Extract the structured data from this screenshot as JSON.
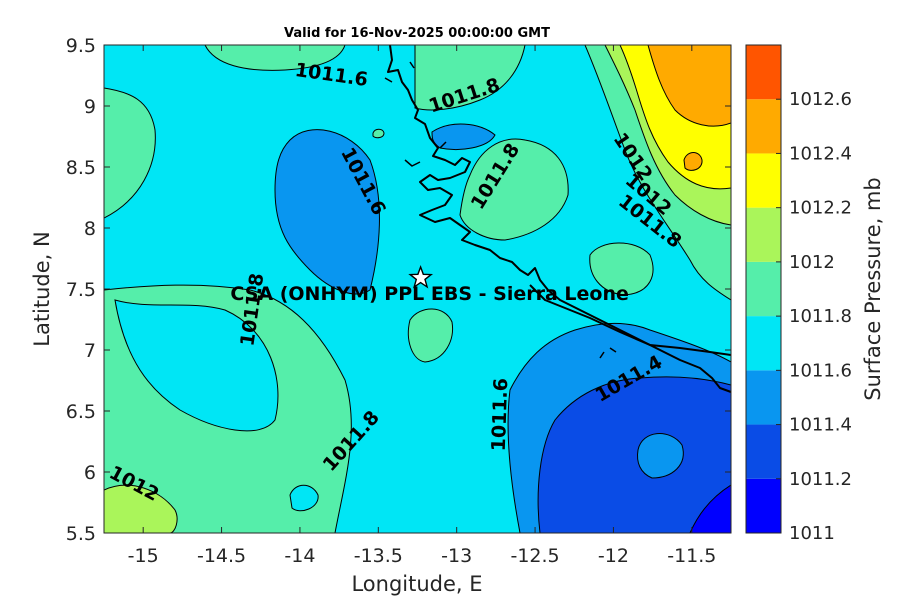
{
  "chart_data": {
    "type": "contour-map",
    "title": "Valid for 16-Nov-2025 00:00:00 GMT",
    "xlabel": "Longitude, E",
    "ylabel": "Latitude, N",
    "xlim": [
      -15.25,
      -11.25
    ],
    "ylim": [
      5.5,
      9.5
    ],
    "xticks": [
      -15,
      -14.5,
      -14,
      -13.5,
      -13,
      -12.5,
      -12,
      -11.5
    ],
    "yticks": [
      5.5,
      6,
      6.5,
      7,
      7.5,
      8,
      8.5,
      9,
      9.5
    ],
    "station": {
      "label": "CSA (ONHYM) PPL EBS  - Sierra Leone",
      "lon": -13.23,
      "lat": 7.59
    },
    "colorbar": {
      "label": "Surface Pressure, mb",
      "levels": [
        1011,
        1011.2,
        1011.4,
        1011.6,
        1011.8,
        1012,
        1012.2,
        1012.4,
        1012.6
      ],
      "tick_labels": [
        "1011",
        "1011.2",
        "1011.4",
        "1011.6",
        "1011.8",
        "1012",
        "1012.2",
        "1012.4",
        "1012.6"
      ],
      "colors": [
        "#0000ff",
        "#0a4ce6",
        "#0996f0",
        "#00e6f5",
        "#55eeaa",
        "#aaf55a",
        "#ffff00",
        "#ffaa00",
        "#ff5500"
      ]
    },
    "contour_labels": [
      {
        "text": "1011.6",
        "lon": -13.8,
        "lat": 9.25,
        "angle": 8
      },
      {
        "text": "1011.8",
        "lon": -12.95,
        "lat": 9.08,
        "angle": -18
      },
      {
        "text": "1011.6",
        "lon": -13.6,
        "lat": 8.38,
        "angle": 62
      },
      {
        "text": "1011.8",
        "lon": -12.75,
        "lat": 8.42,
        "angle": -58
      },
      {
        "text": "1012",
        "lon": -11.88,
        "lat": 8.58,
        "angle": 56
      },
      {
        "text": "1012",
        "lon": -11.78,
        "lat": 8.27,
        "angle": 40
      },
      {
        "text": "1011.8",
        "lon": -11.77,
        "lat": 8.05,
        "angle": 38
      },
      {
        "text": "1011.8",
        "lon": -14.3,
        "lat": 7.33,
        "angle": -82
      },
      {
        "text": "1011.8",
        "lon": -13.67,
        "lat": 6.25,
        "angle": -48
      },
      {
        "text": "1011.6",
        "lon": -12.72,
        "lat": 6.47,
        "angle": -88
      },
      {
        "text": "1011.4",
        "lon": -11.9,
        "lat": 6.76,
        "angle": -30
      },
      {
        "text": "1012",
        "lon": -15.06,
        "lat": 5.9,
        "angle": 28
      }
    ]
  }
}
